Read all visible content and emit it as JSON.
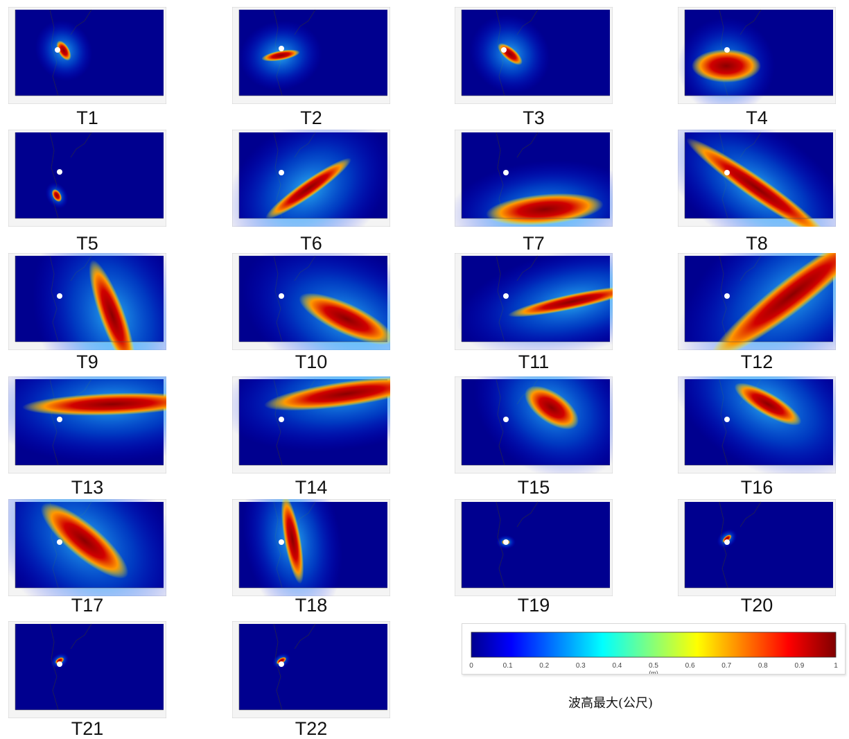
{
  "scenarios": [
    {
      "label": "T1"
    },
    {
      "label": "T2"
    },
    {
      "label": "T3"
    },
    {
      "label": "T4"
    },
    {
      "label": "T5"
    },
    {
      "label": "T6"
    },
    {
      "label": "T7"
    },
    {
      "label": "T8"
    },
    {
      "label": "T9"
    },
    {
      "label": "T10"
    },
    {
      "label": "T11"
    },
    {
      "label": "T12"
    },
    {
      "label": "T13"
    },
    {
      "label": "T14"
    },
    {
      "label": "T15"
    },
    {
      "label": "T16"
    },
    {
      "label": "T17"
    },
    {
      "label": "T18"
    },
    {
      "label": "T19"
    },
    {
      "label": "T20"
    },
    {
      "label": "T21"
    },
    {
      "label": "T22"
    }
  ],
  "colorbar": {
    "ticks": [
      "0",
      "0.1",
      "0.2",
      "0.3",
      "0.4",
      "0.5",
      "0.6",
      "0.7",
      "0.8",
      "0.9",
      "1"
    ],
    "unit": "(m)",
    "title": "波高最大(公尺)",
    "colors": [
      "#00008f",
      "#0000ff",
      "#00ffff",
      "#ffff00",
      "#ff0000",
      "#800000"
    ]
  }
}
